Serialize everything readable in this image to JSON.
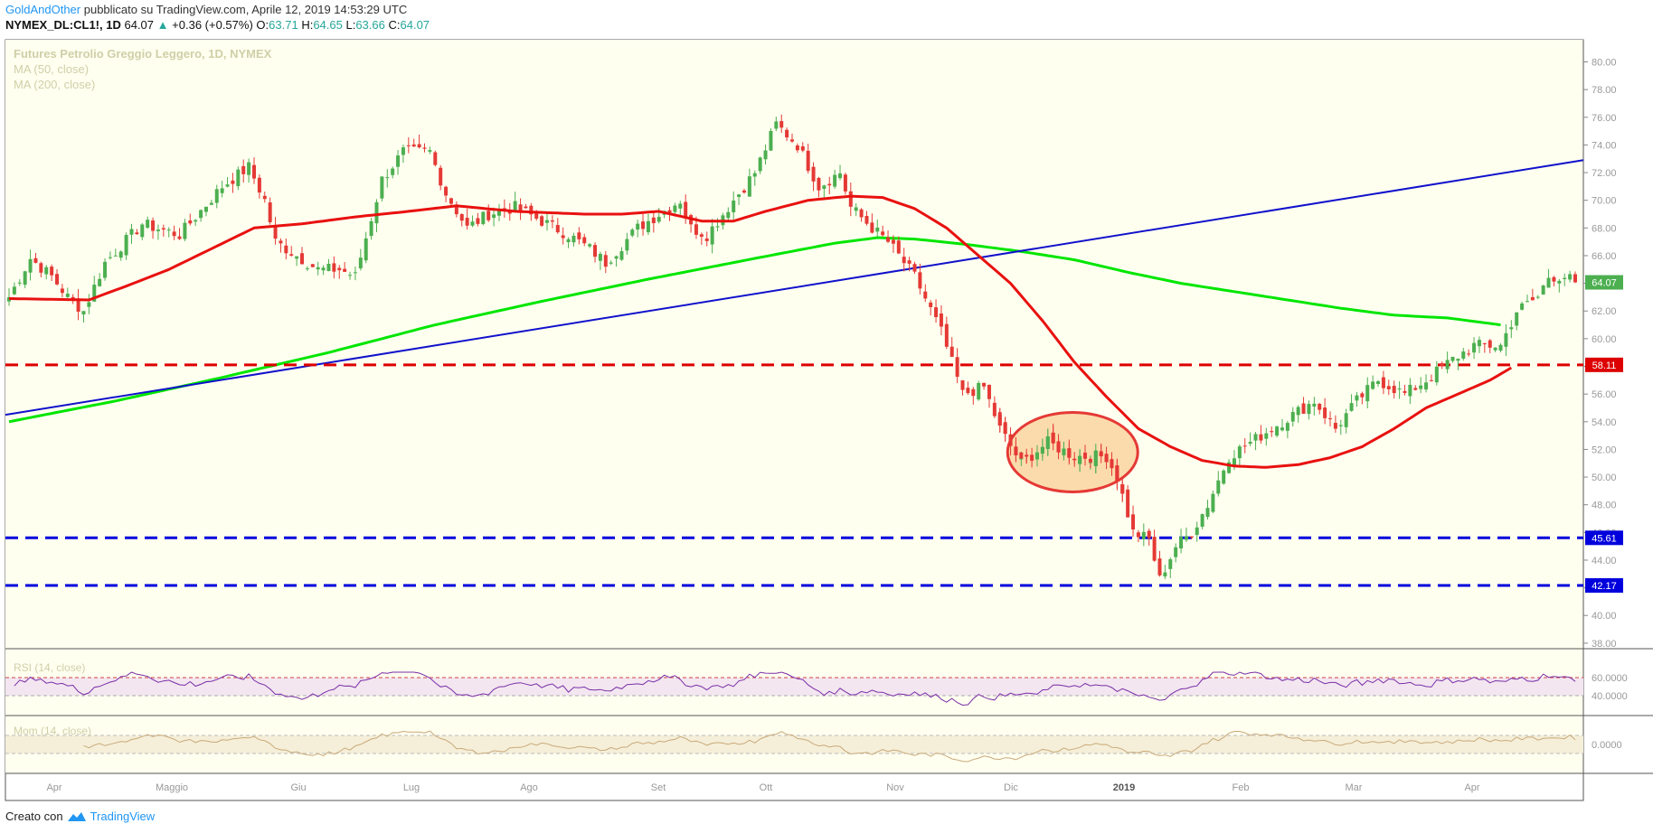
{
  "header": {
    "author": "GoldAndOther",
    "published_text": "pubblicato su TradingView.com, Aprile 12, 2019 14:53:29 UTC",
    "symbol": "NYMEX_DL:CL1!, 1D",
    "last_price": "64.07",
    "change_arrow": "▲",
    "change": "+0.36 (+0.57%)",
    "ohlc": [
      {
        "label": "O:",
        "value": "63.71"
      },
      {
        "label": "H:",
        "value": "64.65"
      },
      {
        "label": "L:",
        "value": "63.66"
      },
      {
        "label": "C:",
        "value": "64.07"
      }
    ]
  },
  "legend": {
    "title": "Futures Petrolio Greggio Leggero, 1D, NYMEX",
    "ma50": "MA (50, close)",
    "ma200": "MA (200, close)",
    "rsi": "RSI (14, close)",
    "mom": "Mom (14, close)"
  },
  "footer": {
    "label": "Creato con",
    "brand": "TradingView"
  },
  "colors": {
    "up": "#4caf50",
    "down": "#e53935",
    "ma50": "#e8110f",
    "ma200": "#00e600",
    "trendline": "#1111cc",
    "resistance": "#dd0000",
    "support": "#0000dd",
    "circle_fill": "#fad5a0",
    "background": "#fffff0",
    "rsi": "#7a2ea8",
    "mom": "#c9a97a"
  },
  "chart_data": {
    "type": "candlestick",
    "title": "Futures Petrolio Greggio Leggero, 1D, NYMEX",
    "x_ticks": [
      "Apr",
      "Maggio",
      "Giu",
      "Lug",
      "Ago",
      "Set",
      "Ott",
      "Nov",
      "Dic",
      "2019",
      "Feb",
      "Mar",
      "Apr"
    ],
    "y_ticks": [
      "38.00",
      "40.00",
      "42.00",
      "44.00",
      "46.00",
      "48.00",
      "50.00",
      "52.00",
      "54.00",
      "56.00",
      "58.00",
      "60.00",
      "62.00",
      "64.00",
      "66.00",
      "68.00",
      "70.00",
      "72.00",
      "74.00",
      "76.00",
      "78.00",
      "80.00"
    ],
    "ylim": [
      38,
      81
    ],
    "grid": false,
    "close_anchors": [
      [
        0,
        63.0
      ],
      [
        4,
        65.8
      ],
      [
        8,
        64.5
      ],
      [
        11,
        63.0
      ],
      [
        14,
        62.0
      ],
      [
        18,
        65.5
      ],
      [
        25,
        68.3
      ],
      [
        32,
        67.5
      ],
      [
        40,
        71.0
      ],
      [
        45,
        72.4
      ],
      [
        48,
        70.0
      ],
      [
        50,
        67.0
      ],
      [
        54,
        66.0
      ],
      [
        58,
        65.0
      ],
      [
        62,
        65.0
      ],
      [
        65,
        64.5
      ],
      [
        70,
        71.5
      ],
      [
        74,
        73.5
      ],
      [
        79,
        73.5
      ],
      [
        82,
        70.5
      ],
      [
        86,
        68.0
      ],
      [
        90,
        69.0
      ],
      [
        95,
        69.5
      ],
      [
        100,
        68.5
      ],
      [
        105,
        67.5
      ],
      [
        109,
        66.5
      ],
      [
        112,
        65.5
      ],
      [
        118,
        68.0
      ],
      [
        122,
        69.0
      ],
      [
        126,
        70.0
      ],
      [
        128,
        68.0
      ],
      [
        131,
        67.5
      ],
      [
        135,
        69.5
      ],
      [
        140,
        72.0
      ],
      [
        144,
        75.5
      ],
      [
        148,
        74.0
      ],
      [
        152,
        71.0
      ],
      [
        156,
        72.0
      ],
      [
        158,
        69.5
      ],
      [
        162,
        68.0
      ],
      [
        165,
        67.0
      ],
      [
        170,
        64.5
      ],
      [
        175,
        60.5
      ],
      [
        179,
        56.0
      ],
      [
        183,
        56.5
      ],
      [
        186,
        53.5
      ],
      [
        190,
        51.0
      ],
      [
        195,
        52.5
      ],
      [
        200,
        51.5
      ],
      [
        206,
        51.5
      ],
      [
        208,
        50.0
      ],
      [
        211,
        46.0
      ],
      [
        214,
        45.5
      ],
      [
        216,
        42.6
      ],
      [
        219,
        45.0
      ],
      [
        222,
        46.0
      ],
      [
        225,
        48.0
      ],
      [
        229,
        51.5
      ],
      [
        233,
        52.5
      ],
      [
        237,
        53.5
      ],
      [
        241,
        54.5
      ],
      [
        245,
        55.5
      ],
      [
        249,
        53.5
      ],
      [
        253,
        55.5
      ],
      [
        257,
        57.0
      ],
      [
        262,
        56.0
      ],
      [
        266,
        57.0
      ],
      [
        271,
        58.5
      ],
      [
        275,
        59.5
      ],
      [
        280,
        59.5
      ],
      [
        283,
        62.0
      ],
      [
        287,
        63.0
      ],
      [
        289,
        64.5
      ],
      [
        292,
        64.5
      ],
      [
        294,
        64.07
      ]
    ],
    "ma50_anchors": [
      [
        0,
        62.9
      ],
      [
        15,
        62.8
      ],
      [
        22,
        63.8
      ],
      [
        30,
        65.0
      ],
      [
        38,
        66.5
      ],
      [
        46,
        68.0
      ],
      [
        55,
        68.3
      ],
      [
        65,
        68.8
      ],
      [
        75,
        69.2
      ],
      [
        84,
        69.6
      ],
      [
        95,
        69.2
      ],
      [
        108,
        69.0
      ],
      [
        115,
        69.0
      ],
      [
        122,
        69.2
      ],
      [
        130,
        68.5
      ],
      [
        136,
        68.5
      ],
      [
        142,
        69.2
      ],
      [
        150,
        70.0
      ],
      [
        158,
        70.3
      ],
      [
        164,
        70.2
      ],
      [
        170,
        69.4
      ],
      [
        176,
        68.0
      ],
      [
        182,
        66.0
      ],
      [
        188,
        64.0
      ],
      [
        194,
        61.3
      ],
      [
        200,
        58.3
      ],
      [
        206,
        55.8
      ],
      [
        212,
        53.5
      ],
      [
        218,
        52.2
      ],
      [
        224,
        51.2
      ],
      [
        230,
        50.8
      ],
      [
        236,
        50.7
      ],
      [
        242,
        50.9
      ],
      [
        248,
        51.4
      ],
      [
        254,
        52.2
      ],
      [
        260,
        53.5
      ],
      [
        266,
        55.0
      ],
      [
        272,
        56.0
      ],
      [
        278,
        57.0
      ],
      [
        282,
        57.9
      ]
    ],
    "ma200_anchors": [
      [
        0,
        54.0
      ],
      [
        20,
        55.5
      ],
      [
        40,
        57.2
      ],
      [
        60,
        59.0
      ],
      [
        80,
        61.0
      ],
      [
        100,
        62.7
      ],
      [
        120,
        64.3
      ],
      [
        140,
        65.8
      ],
      [
        155,
        66.9
      ],
      [
        163,
        67.3
      ],
      [
        170,
        67.2
      ],
      [
        180,
        66.8
      ],
      [
        190,
        66.3
      ],
      [
        200,
        65.7
      ],
      [
        210,
        64.8
      ],
      [
        220,
        64.0
      ],
      [
        230,
        63.4
      ],
      [
        240,
        62.8
      ],
      [
        250,
        62.2
      ],
      [
        260,
        61.7
      ],
      [
        270,
        61.5
      ],
      [
        280,
        61.0
      ]
    ],
    "annotations": {
      "current_price": 64.07,
      "resistance": 58.11,
      "support_1": 45.61,
      "support_2": 42.17,
      "trendline": {
        "start": [
          0,
          54.5
        ],
        "end": [
          294,
          72.9
        ]
      }
    },
    "rsi": {
      "name": "RSI (14, close)",
      "ticks": [
        "60.0000",
        "40.0000"
      ],
      "band": [
        40,
        60
      ]
    },
    "momentum": {
      "name": "Mom (14, close)",
      "ticks": [
        "0.0000"
      ]
    }
  }
}
